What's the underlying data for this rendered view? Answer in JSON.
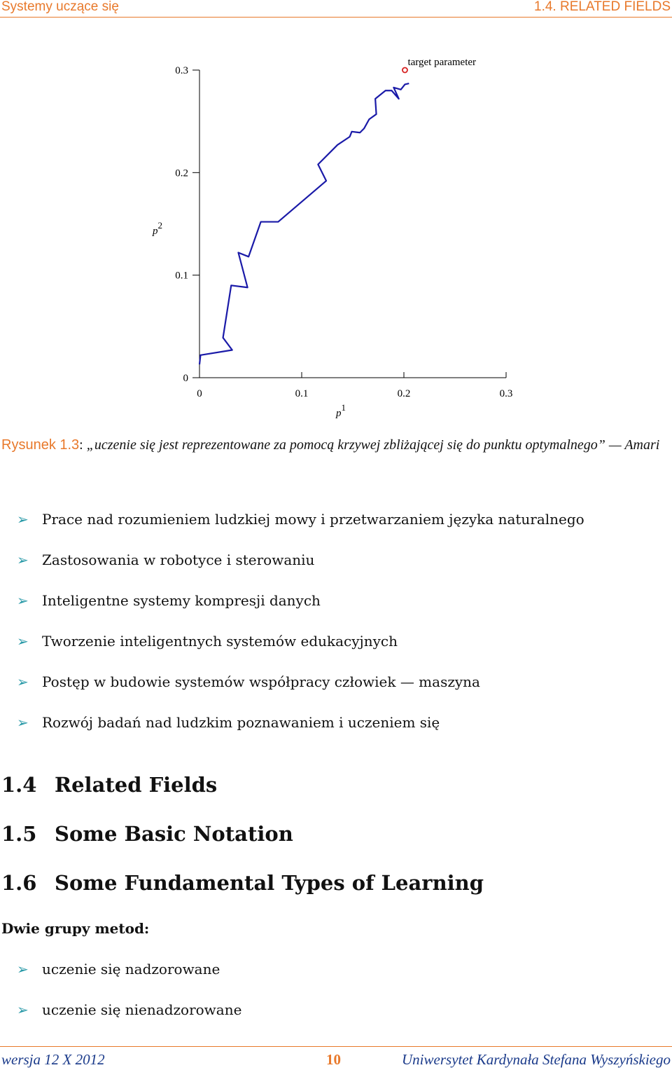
{
  "header": {
    "left": "Systemy uczące się",
    "right": "1.4. RELATED FIELDS"
  },
  "chart_data": {
    "type": "line",
    "xlabel": {
      "symbol": "p",
      "index": "1"
    },
    "ylabel": {
      "symbol": "p",
      "index": "2"
    },
    "xlim": [
      0,
      0.3
    ],
    "ylim": [
      0,
      0.3
    ],
    "xticks": [
      0,
      0.1,
      0.2,
      0.3
    ],
    "yticks": [
      0,
      0.1,
      0.2,
      0.3
    ],
    "series": [
      {
        "color": "#1a1aa8",
        "x": [
          0,
          0.001,
          0.032,
          0.023,
          0.031,
          0.047,
          0.038,
          0.048,
          0.06,
          0.077,
          0.124,
          0.116,
          0.135,
          0.147,
          0.149,
          0.157,
          0.161,
          0.166,
          0.173,
          0.172,
          0.182,
          0.188,
          0.195,
          0.19,
          0.197,
          0.201,
          0.205
        ],
        "values": [
          0.013,
          0.022,
          0.027,
          0.039,
          0.09,
          0.088,
          0.122,
          0.118,
          0.152,
          0.152,
          0.192,
          0.208,
          0.227,
          0.235,
          0.24,
          0.239,
          0.243,
          0.252,
          0.257,
          0.272,
          0.28,
          0.28,
          0.272,
          0.283,
          0.281,
          0.286,
          0.287
        ]
      }
    ],
    "annotation": {
      "text": "target parameter",
      "x": 0.201,
      "y": 0.3,
      "color": "#d62020"
    }
  },
  "caption": {
    "label": "Rysunek 1.3",
    "text": "„uczenie się jest reprezentowane za pomocą krzywej zbliżającej się do punktu optymalnego” — Amari"
  },
  "list1": [
    "Prace nad rozumieniem ludzkiej mowy i przetwarzaniem języka naturalnego",
    "Zastosowania w robotyce i sterowaniu",
    "Inteligentne systemy kompresji danych",
    "Tworzenie inteligentnych systemów edukacyjnych",
    "Postęp w budowie systemów współpracy człowiek — maszyna",
    "Rozwój badań nad ludzkim poznawaniem i uczeniem się"
  ],
  "sections": [
    {
      "number": "1.4",
      "title": "Related Fields"
    },
    {
      "number": "1.5",
      "title": "Some Basic Notation"
    },
    {
      "number": "1.6",
      "title": "Some Fundamental Types of Learning"
    }
  ],
  "paragraph": "Dwie grupy metod:",
  "list2": [
    "uczenie się nadzorowane",
    "uczenie się nienadzorowane"
  ],
  "footer": {
    "left": "wersja 12 X 2012",
    "page": "10",
    "right": "Uniwersytet Kardynała Stefana Wyszyńskiego"
  }
}
